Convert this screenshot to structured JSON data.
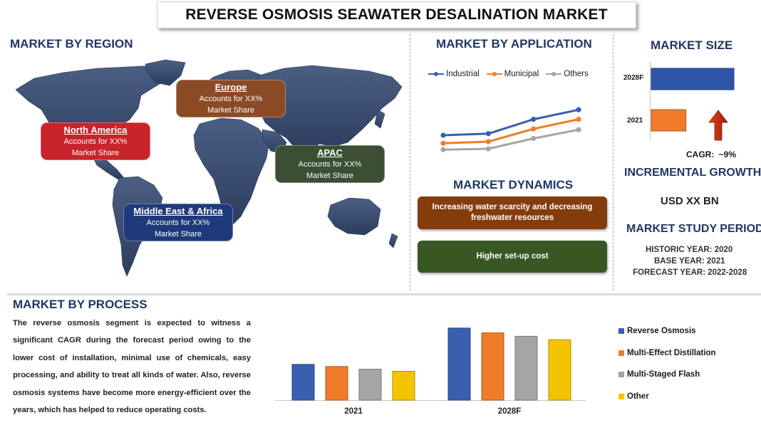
{
  "title": "REVERSE OSMOSIS SEAWATER DESALINATION MARKET",
  "region": {
    "heading": "MARKET BY REGION",
    "callouts": [
      {
        "name": "North America",
        "line1": "Accounts for XX%",
        "line2": "Market Share",
        "color": "#c8242b"
      },
      {
        "name": "Europe",
        "line1": "Accounts for XX%",
        "line2": "Market Share",
        "color": "#8b4a26"
      },
      {
        "name": "APAC",
        "line1": "Accounts for XX%",
        "line2": "Market Share",
        "color": "#3a4f33"
      },
      {
        "name": "Middle East & Africa",
        "line1": "Accounts for XX%",
        "line2": "Market Share",
        "color": "#1f3a7a"
      }
    ]
  },
  "application": {
    "heading": "MARKET BY APPLICATION",
    "legend": [
      "Industrial",
      "Municipal",
      "Others"
    ]
  },
  "dynamics": {
    "heading": "MARKET DYNAMICS",
    "driver": "Increasing water scarcity and decreasing freshwater resources",
    "restraint": "Higher set-up cost"
  },
  "market_size": {
    "heading": "MARKET SIZE",
    "bars": [
      {
        "label": "2028F",
        "color": "#2e55a6"
      },
      {
        "label": "2021",
        "color": "#f07c2a"
      }
    ],
    "cagr_label": "CAGR:",
    "cagr_value": "~9%"
  },
  "incremental": {
    "heading": "INCREMENTAL GROWTH",
    "value": "USD XX BN"
  },
  "study_period": {
    "heading": "MARKET STUDY PERIOD",
    "lines": [
      "HISTORIC YEAR: 2020",
      "BASE YEAR: 2021",
      "FORECAST YEAR: 2022-2028"
    ]
  },
  "process": {
    "heading": "MARKET BY PROCESS",
    "paragraph": "The reverse osmosis segment is expected to witness a significant CAGR during the forecast period owing to the lower cost of installation, minimal use of chemicals, easy processing, and ability to treat all kinds of water. Also, reverse osmosis systems have become more energy-efficient over the years, which has helped to reduce operating costs."
  },
  "colors": {
    "heading": "#1f3864",
    "blue": "#3a5fb0",
    "orange": "#f07c2a",
    "gray": "#a5a5a5",
    "yellow": "#f5c400"
  },
  "chart_data": [
    {
      "type": "line",
      "x": [
        1,
        2,
        3,
        4
      ],
      "series": [
        {
          "name": "Industrial",
          "values": [
            50,
            52,
            70,
            82
          ],
          "color": "#3a5fb0"
        },
        {
          "name": "Municipal",
          "values": [
            40,
            42,
            58,
            70
          ],
          "color": "#f07c2a"
        },
        {
          "name": "Others",
          "values": [
            32,
            33,
            46,
            57
          ],
          "color": "#a5a5a5"
        }
      ],
      "ylim": [
        0,
        100
      ]
    },
    {
      "type": "bar",
      "orientation": "horizontal",
      "categories": [
        "2028F",
        "2021"
      ],
      "values": [
        100,
        42
      ]
    },
    {
      "type": "bar",
      "categories": [
        "2021",
        "2028F"
      ],
      "series": [
        {
          "name": "Reverse Osmosis",
          "values": [
            52,
            105
          ],
          "color": "#3a5fb0"
        },
        {
          "name": "Multi-Effect Distillation",
          "values": [
            49,
            98
          ],
          "color": "#f07c2a"
        },
        {
          "name": "Multi-Staged Flash",
          "values": [
            45,
            93
          ],
          "color": "#a5a5a5"
        },
        {
          "name": "Other",
          "values": [
            42,
            88
          ],
          "color": "#f5c400"
        }
      ],
      "ylim": [
        0,
        110
      ]
    }
  ]
}
